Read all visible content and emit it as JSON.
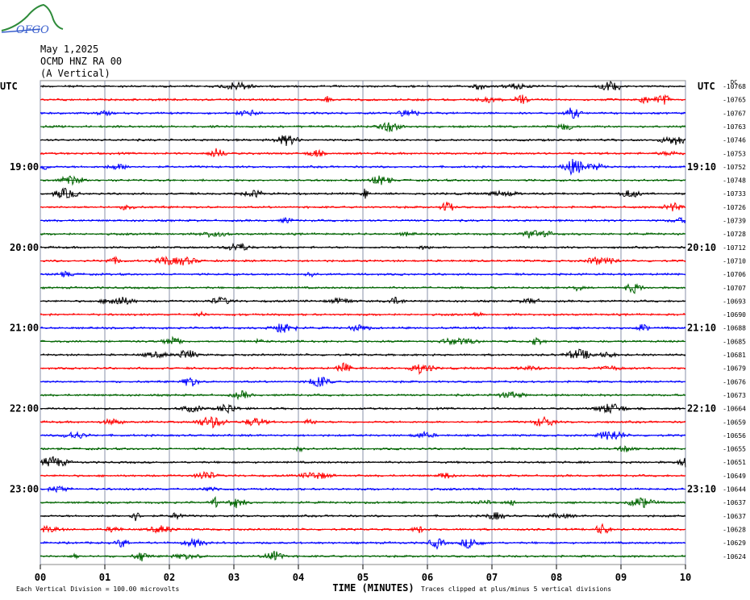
{
  "logo": {
    "text": "OFGO"
  },
  "header": {
    "date": "May 1,2025",
    "station": "OCMD HNZ RA 00",
    "component": "(A Vertical)"
  },
  "chart_data": {
    "type": "line",
    "title": "",
    "left_tz": "UTC",
    "right_tz": "UTC",
    "xlabel": "TIME (MINUTES)",
    "x_ticks": [
      "00",
      "01",
      "02",
      "03",
      "04",
      "05",
      "06",
      "07",
      "08",
      "09",
      "10"
    ],
    "xlim": [
      0,
      10
    ],
    "footer_left": "Each Vertical Division =  100.00 microvolts",
    "footer_right": "Traces clipped at plus/minus 5 vertical divisions",
    "right_header": "DC",
    "hour_labels_left": [
      "19:00",
      "20:00",
      "21:00",
      "22:00",
      "23:00"
    ],
    "hour_labels_right": [
      "19:10",
      "20:10",
      "21:10",
      "22:10",
      "23:10"
    ],
    "hour_label_rows": [
      6,
      12,
      18,
      24,
      30
    ],
    "trace_colors": [
      "#000000",
      "#ff0000",
      "#0000ff",
      "#006400"
    ],
    "trace_offsets": [
      "-10768",
      "-10765",
      "-10767",
      "-10763",
      "-10746",
      "-10753",
      "-10752",
      "-10748",
      "-10733",
      "-10726",
      "-10739",
      "-10728",
      "-10712",
      "-10710",
      "-10706",
      "-10707",
      "-10693",
      "-10690",
      "-10688",
      "-10685",
      "-10681",
      "-10679",
      "-10676",
      "-10673",
      "-10664",
      "-10659",
      "-10656",
      "-10655",
      "-10651",
      "-10649",
      "-10644",
      "-10637",
      "-10637",
      "-10628",
      "-10629",
      "-10624"
    ]
  }
}
